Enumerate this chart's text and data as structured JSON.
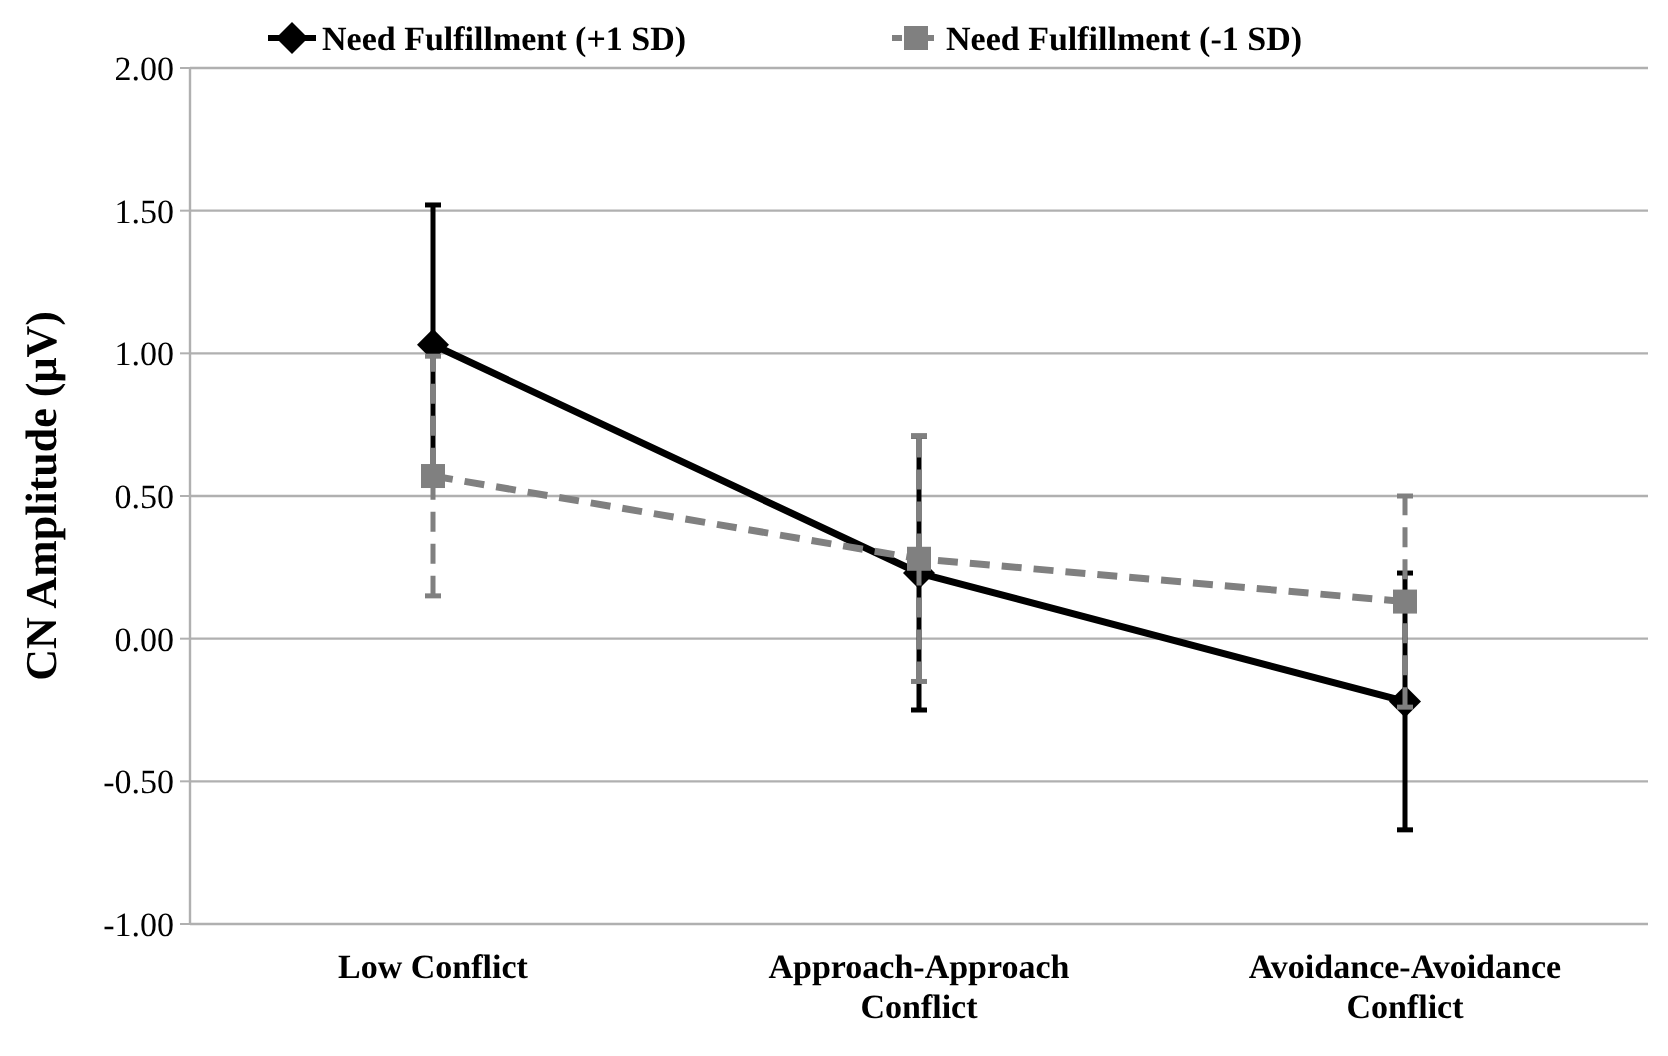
{
  "chart_data": {
    "type": "line",
    "ylabel": "CN Amplitude (μV)",
    "categories": [
      "Low Conflict",
      "Approach-Approach Conflict",
      "Avoidance-Avoidance Conflict"
    ],
    "series": [
      {
        "name": "Need Fulfillment (+1 SD)",
        "color": "#000000",
        "values": [
          1.03,
          0.23,
          -0.22
        ],
        "errors": [
          0.49,
          0.48,
          0.45
        ],
        "marker": "diamond",
        "line_style": "solid"
      },
      {
        "name": "Need Fulfillment (-1 SD)",
        "color": "#808080",
        "values": [
          0.57,
          0.28,
          0.13
        ],
        "errors": [
          0.42,
          0.43,
          0.37
        ],
        "marker": "square",
        "line_style": "dashed"
      }
    ],
    "ylim": [
      -1,
      2
    ],
    "yticks": [
      {
        "value": -1,
        "label": "-1.00"
      },
      {
        "value": -0.5,
        "label": "-0.50"
      },
      {
        "value": 0,
        "label": "0.00"
      },
      {
        "value": 0.5,
        "label": "0.50"
      },
      {
        "value": 1,
        "label": "1.00"
      },
      {
        "value": 1.5,
        "label": "1.50"
      },
      {
        "value": 2,
        "label": "2.00"
      }
    ],
    "grid": "y",
    "legend": "top"
  }
}
